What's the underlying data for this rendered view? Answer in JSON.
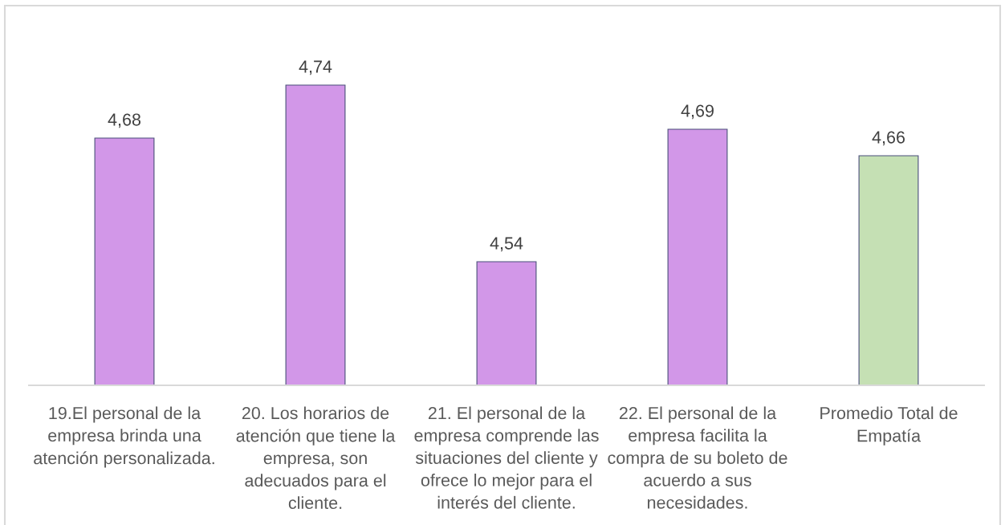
{
  "chart_data": {
    "type": "bar",
    "categories": [
      "19.El personal de la\nempresa brinda una\natención personalizada.",
      "20. Los horarios de\natención que tiene la\nempresa, son\nadecuados para el\ncliente.",
      "21. El personal de la\nempresa comprende las\nsituaciones del cliente y\nofrece lo mejor para el\ninterés del cliente.",
      "22. El personal de la\nempresa facilita la\ncompra de su boleto de\nacuerdo a sus\nnecesidades.",
      "Promedio Total de\nEmpatía"
    ],
    "values": [
      4.68,
      4.74,
      4.54,
      4.69,
      4.66
    ],
    "colors": [
      "#d297e8",
      "#d297e8",
      "#d297e8",
      "#d297e8",
      "#c5e0b4"
    ],
    "value_labels": [
      "4,68",
      "4,74",
      "4,54",
      "4,69",
      "4,66"
    ],
    "ylim": [
      4.4,
      4.83
    ],
    "tick_labels": "x",
    "grid": false,
    "legend": false
  }
}
